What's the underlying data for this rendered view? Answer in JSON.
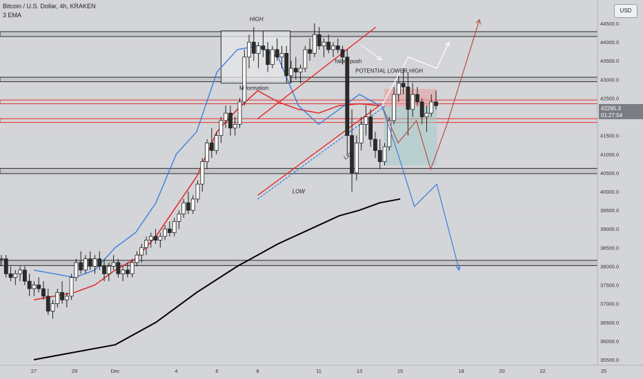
{
  "header": {
    "symbol_title": "Bitcoin / U.S. Dollar, 4h, KRAKEN",
    "indicator": "3 EMA",
    "currency_button": "USD"
  },
  "price_tag": {
    "value": "42265.3",
    "countdown": "01:27:54"
  },
  "colors": {
    "background": "#d4d5d8",
    "bullish": "#ffffff",
    "bearish": "#2b2b2b",
    "ema_fast": "#3b7ddd",
    "ema_mid": "#e32b2b",
    "ema_slow": "#000000",
    "zone_fill": "#c5c6ca",
    "price_tag": "#7a7d85"
  },
  "chart_data": {
    "type": "candlestick",
    "title": "",
    "ylim": [
      35500,
      44500
    ],
    "y_ticks": [
      35500,
      36000,
      36500,
      37000,
      37500,
      38000,
      38500,
      39000,
      39500,
      40000,
      40500,
      41000,
      41500,
      42000,
      42500,
      43000,
      43500,
      44000,
      44500
    ],
    "x_tick_labels": [
      {
        "label": "27",
        "day": 0
      },
      {
        "label": "29",
        "day": 2
      },
      {
        "label": "Dec",
        "day": 4
      },
      {
        "label": "4",
        "day": 7
      },
      {
        "label": "6",
        "day": 9
      },
      {
        "label": "8",
        "day": 11
      },
      {
        "label": "11",
        "day": 14
      },
      {
        "label": "13",
        "day": 16
      },
      {
        "label": "15",
        "day": 18
      },
      {
        "label": "18",
        "day": 21
      },
      {
        "label": "20",
        "day": 23
      },
      {
        "label": "22",
        "day": 25
      },
      {
        "label": "25",
        "day": 28
      }
    ],
    "horizontal_zones": [
      {
        "top": 44280,
        "bottom": 44150,
        "style": "gray"
      },
      {
        "top": 43060,
        "bottom": 42940,
        "style": "gray"
      },
      {
        "top": 42450,
        "bottom": 42350,
        "style": "red"
      },
      {
        "top": 41950,
        "bottom": 41850,
        "style": "red"
      },
      {
        "top": 40620,
        "bottom": 40480,
        "style": "gray"
      },
      {
        "top": 38160,
        "bottom": 38020,
        "style": "gray"
      }
    ],
    "range_box": {
      "day_start": 9.2,
      "day_end": 12.6,
      "top": 44300,
      "bottom": 42900
    },
    "channel": {
      "upper": [
        [
          11.0,
          41950
        ],
        [
          16.8,
          44400
        ]
      ],
      "lower": [
        [
          11.0,
          39900
        ],
        [
          17.1,
          42350
        ]
      ],
      "dashed": [
        [
          11.0,
          39800
        ],
        [
          17.3,
          42300
        ]
      ]
    },
    "candles": [
      [
        38.2,
        38.3,
        38.0,
        38.2
      ],
      [
        38.2,
        38.3,
        37.7,
        37.8
      ],
      [
        37.8,
        38.0,
        37.6,
        37.7
      ],
      [
        37.7,
        37.9,
        37.5,
        37.8
      ],
      [
        37.8,
        38.0,
        37.6,
        37.9
      ],
      [
        37.9,
        38.0,
        37.5,
        37.6
      ],
      [
        37.6,
        37.8,
        37.2,
        37.4
      ],
      [
        37.4,
        37.6,
        37.2,
        37.5
      ],
      [
        37.5,
        37.7,
        37.3,
        37.4
      ],
      [
        37.4,
        37.6,
        37.1,
        37.2
      ],
      [
        37.2,
        37.4,
        36.7,
        36.8
      ],
      [
        36.8,
        37.1,
        36.6,
        37.0
      ],
      [
        37.0,
        37.4,
        36.9,
        37.3
      ],
      [
        37.3,
        37.6,
        37.0,
        37.1
      ],
      [
        37.1,
        37.3,
        36.9,
        37.2
      ],
      [
        37.2,
        37.8,
        37.1,
        37.7
      ],
      [
        37.7,
        38.2,
        37.6,
        38.1
      ],
      [
        38.1,
        38.4,
        37.8,
        37.9
      ],
      [
        37.9,
        38.3,
        37.8,
        38.2
      ],
      [
        38.2,
        38.4,
        37.9,
        38.0
      ],
      [
        38.0,
        38.3,
        37.8,
        38.2
      ],
      [
        38.2,
        38.4,
        37.9,
        38.0
      ],
      [
        38.0,
        38.2,
        37.6,
        37.8
      ],
      [
        37.8,
        38.1,
        37.6,
        38.0
      ],
      [
        38.0,
        38.3,
        37.9,
        38.1
      ],
      [
        38.1,
        38.2,
        37.7,
        37.8
      ],
      [
        37.8,
        38.0,
        37.6,
        37.9
      ],
      [
        37.9,
        38.1,
        37.7,
        37.8
      ],
      [
        37.8,
        38.2,
        37.7,
        38.1
      ],
      [
        38.1,
        38.4,
        38.0,
        38.3
      ],
      [
        38.3,
        38.6,
        38.1,
        38.5
      ],
      [
        38.5,
        38.8,
        38.3,
        38.7
      ],
      [
        38.7,
        38.9,
        38.5,
        38.8
      ],
      [
        38.8,
        39.0,
        38.6,
        38.7
      ],
      [
        38.7,
        38.9,
        38.5,
        38.8
      ],
      [
        38.8,
        39.1,
        38.7,
        39.0
      ],
      [
        39.0,
        39.2,
        38.8,
        38.9
      ],
      [
        38.9,
        39.3,
        38.8,
        39.2
      ],
      [
        39.2,
        39.5,
        39.0,
        39.4
      ],
      [
        39.4,
        39.8,
        39.3,
        39.7
      ],
      [
        39.7,
        40.0,
        39.4,
        39.5
      ],
      [
        39.5,
        39.9,
        39.4,
        39.8
      ],
      [
        39.8,
        40.3,
        39.7,
        40.2
      ],
      [
        40.2,
        40.9,
        40.0,
        40.8
      ],
      [
        40.8,
        41.4,
        40.6,
        41.3
      ],
      [
        41.3,
        41.7,
        40.9,
        41.1
      ],
      [
        41.1,
        41.6,
        41.0,
        41.5
      ],
      [
        41.5,
        42.0,
        41.3,
        41.9
      ],
      [
        41.9,
        42.3,
        41.7,
        42.1
      ],
      [
        42.1,
        42.3,
        41.5,
        41.7
      ],
      [
        41.7,
        42.0,
        41.5,
        41.8
      ],
      [
        41.8,
        42.5,
        41.7,
        42.4
      ],
      [
        42.4,
        43.8,
        42.3,
        43.6
      ],
      [
        43.6,
        44.2,
        43.3,
        44.0
      ],
      [
        44.0,
        44.4,
        43.5,
        43.7
      ],
      [
        43.7,
        44.0,
        43.3,
        43.9
      ],
      [
        43.9,
        44.3,
        43.6,
        43.8
      ],
      [
        43.8,
        44.0,
        43.2,
        43.4
      ],
      [
        43.4,
        43.9,
        43.3,
        43.8
      ],
      [
        43.8,
        44.1,
        43.5,
        43.6
      ],
      [
        43.6,
        43.9,
        43.3,
        43.7
      ],
      [
        43.7,
        43.9,
        42.9,
        43.1
      ],
      [
        43.1,
        43.5,
        42.9,
        43.3
      ],
      [
        43.3,
        43.6,
        43.0,
        43.2
      ],
      [
        43.2,
        43.4,
        42.9,
        43.3
      ],
      [
        43.3,
        43.9,
        43.2,
        43.8
      ],
      [
        43.8,
        44.1,
        43.5,
        43.7
      ],
      [
        43.7,
        44.5,
        43.6,
        44.2
      ],
      [
        44.2,
        44.4,
        43.8,
        43.9
      ],
      [
        43.9,
        44.1,
        43.6,
        44.0
      ],
      [
        44.0,
        44.2,
        43.7,
        43.8
      ],
      [
        43.8,
        44.0,
        43.6,
        43.9
      ],
      [
        43.9,
        44.1,
        43.7,
        43.8
      ],
      [
        43.8,
        43.9,
        43.4,
        43.6
      ],
      [
        43.6,
        43.8,
        41.0,
        41.5
      ],
      [
        41.5,
        42.2,
        40.0,
        40.5
      ],
      [
        40.5,
        41.5,
        40.3,
        41.3
      ],
      [
        41.3,
        42.0,
        41.1,
        41.8
      ],
      [
        41.8,
        42.3,
        41.5,
        42.0
      ],
      [
        42.0,
        42.2,
        41.2,
        41.4
      ],
      [
        41.4,
        41.6,
        40.9,
        41.1
      ],
      [
        41.1,
        41.4,
        40.6,
        40.8
      ],
      [
        40.8,
        41.3,
        40.7,
        41.2
      ],
      [
        41.2,
        42.0,
        41.1,
        41.9
      ],
      [
        41.9,
        42.8,
        41.8,
        42.6
      ],
      [
        42.6,
        43.1,
        42.4,
        42.9
      ],
      [
        42.9,
        43.3,
        42.6,
        42.8
      ],
      [
        42.8,
        43.2,
        41.5,
        42.2
      ],
      [
        42.2,
        42.9,
        42.0,
        42.6
      ],
      [
        42.6,
        42.8,
        42.3,
        42.4
      ],
      [
        42.4,
        42.5,
        41.8,
        42.0
      ],
      [
        42.0,
        42.3,
        41.6,
        42.1
      ],
      [
        42.1,
        42.6,
        42.0,
        42.4
      ],
      [
        42.4,
        42.7,
        42.2,
        42.3
      ]
    ],
    "ema_fast": [
      [
        0,
        37.9
      ],
      [
        2,
        37.7
      ],
      [
        3,
        37.9
      ],
      [
        4,
        38.5
      ],
      [
        5,
        38.9
      ],
      [
        6,
        39.7
      ],
      [
        7,
        41.0
      ],
      [
        8,
        41.6
      ],
      [
        9,
        43.2
      ],
      [
        10,
        43.8
      ],
      [
        11,
        43.9
      ],
      [
        12,
        43.6
      ],
      [
        13,
        42.3
      ],
      [
        14,
        41.8
      ],
      [
        15,
        42.2
      ],
      [
        16,
        42.6
      ],
      [
        17,
        42.3
      ]
    ],
    "ema_mid": [
      [
        0,
        37.1
      ],
      [
        2,
        37.3
      ],
      [
        3,
        37.5
      ],
      [
        4,
        37.9
      ],
      [
        5,
        38.2
      ],
      [
        6,
        38.8
      ],
      [
        7,
        39.6
      ],
      [
        8,
        40.4
      ],
      [
        9,
        41.6
      ],
      [
        10,
        42.2
      ],
      [
        11,
        42.7
      ],
      [
        12,
        42.4
      ],
      [
        13,
        42.2
      ],
      [
        14,
        42.1
      ],
      [
        15,
        42.3
      ],
      [
        16,
        42.35
      ],
      [
        17,
        42.3
      ]
    ],
    "ema_slow": [
      [
        0,
        35.5
      ],
      [
        4,
        35.9
      ],
      [
        6,
        36.5
      ],
      [
        8,
        37.3
      ],
      [
        10,
        38.0
      ],
      [
        12,
        38.6
      ],
      [
        14,
        39.1
      ],
      [
        15,
        39.35
      ],
      [
        16,
        39.5
      ],
      [
        17,
        39.7
      ],
      [
        18,
        39.8
      ]
    ],
    "scenario_paths": [
      {
        "color": "#ffffff",
        "points": [
          [
            17.1,
            42.3
          ],
          [
            18.4,
            43.6
          ],
          [
            19.8,
            43.3
          ],
          [
            20.4,
            44.0
          ]
        ]
      },
      {
        "color": "#b84b4b",
        "points": [
          [
            17.1,
            42.3
          ],
          [
            17.9,
            41.3
          ],
          [
            18.8,
            41.9
          ],
          [
            19.5,
            40.6
          ],
          [
            20.3,
            41.8
          ],
          [
            21.9,
            44.6
          ]
        ]
      },
      {
        "color": "#3b7ddd",
        "points": [
          [
            17.1,
            42.3
          ],
          [
            17.9,
            41.0
          ],
          [
            18.7,
            39.6
          ],
          [
            19.8,
            40.2
          ],
          [
            20.9,
            37.9
          ]
        ]
      }
    ],
    "position_box": {
      "day_start": 17.2,
      "day_end": 19.8,
      "stop_top": 42750,
      "entry": 42265,
      "target_bottom": 40700
    },
    "annotations": [
      {
        "text": "HIGH",
        "day": 10.6,
        "price": 44560
      },
      {
        "text": "M formation",
        "day": 10.1,
        "price": 42720
      },
      {
        "text": "failed push",
        "day": 14.8,
        "price": 43440
      },
      {
        "text": "POTENTIAL LOWER HIGH",
        "day": 15.8,
        "price": 43180
      },
      {
        "text": "LOW",
        "day": 12.7,
        "price": 39950
      },
      {
        "text": "LIQ",
        "day": 15.3,
        "price": 40850
      }
    ]
  }
}
